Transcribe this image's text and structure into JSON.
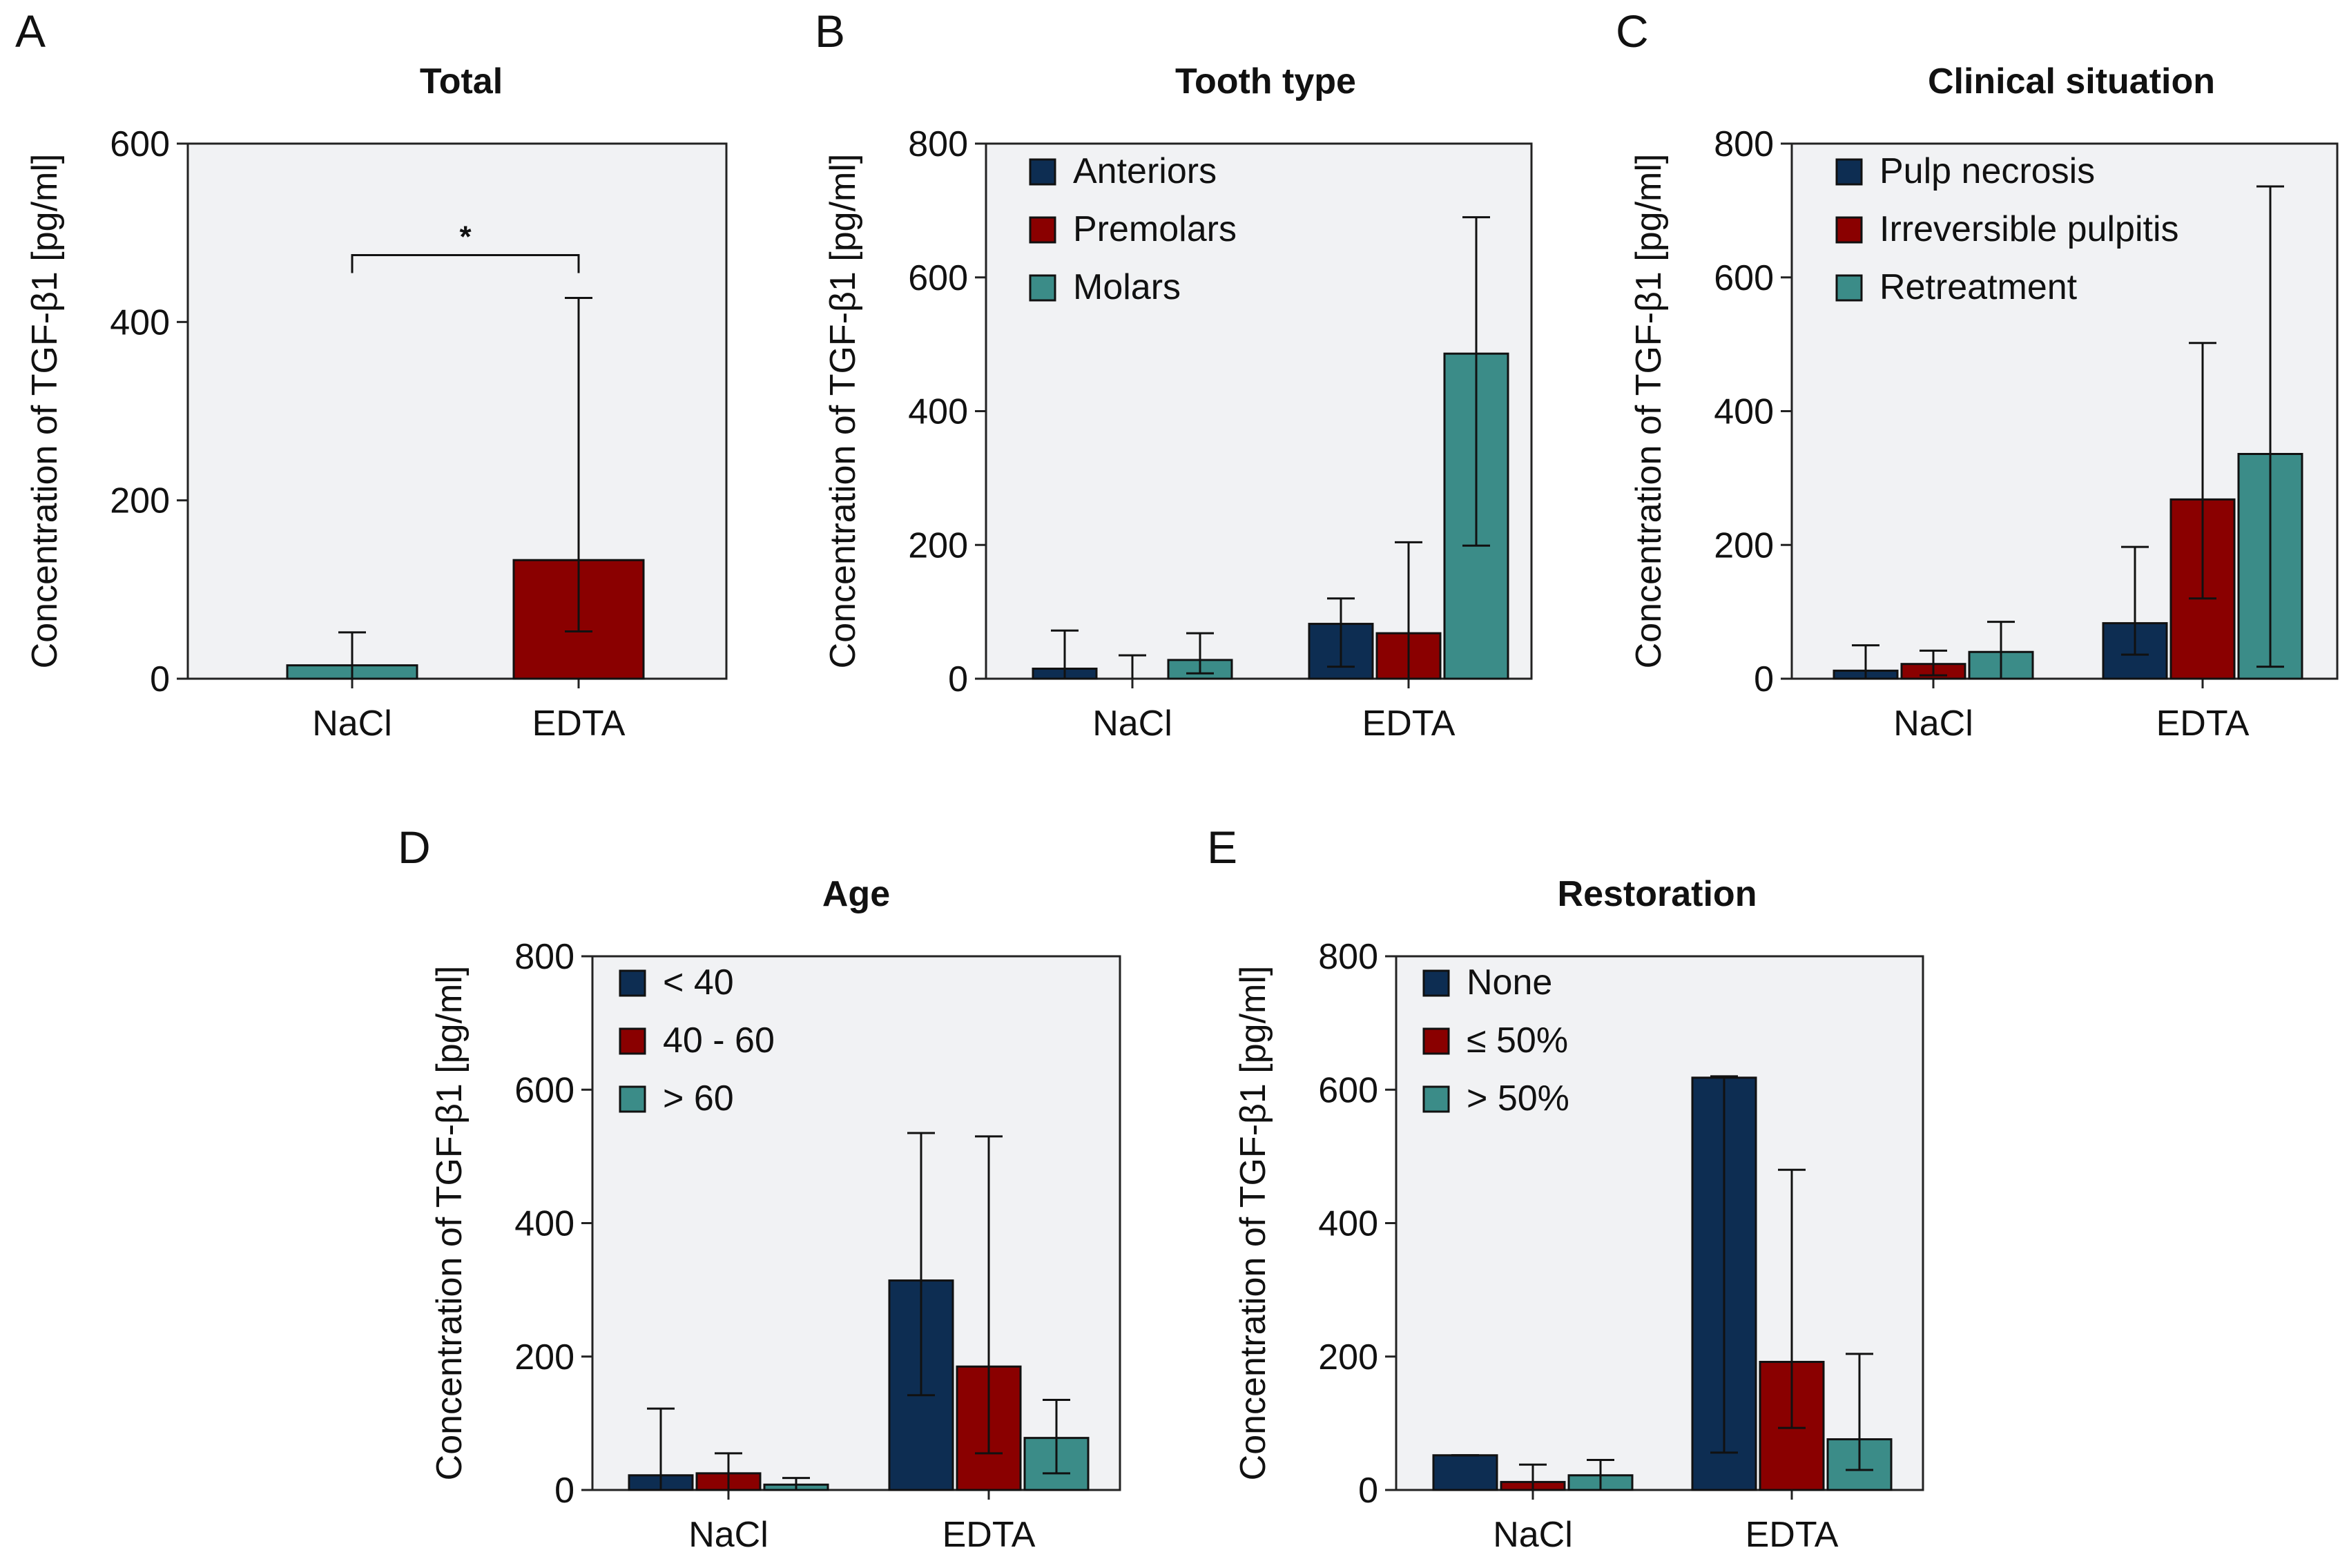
{
  "colors": {
    "navy": "#0d2d52",
    "red": "#8a0000",
    "teal": "#3b8c88",
    "plot_bg": "#f1f2f4",
    "axis": "#222222"
  },
  "chart_data": [
    {
      "id": "A",
      "letter": "A",
      "type": "bar",
      "title": "Total",
      "ylabel": "Concentration of TGF-β1 [pg/ml]",
      "ylim": [
        0,
        600
      ],
      "yticks": [
        "0",
        "200",
        "400",
        "600"
      ],
      "categories": [
        "NaCl",
        "EDTA"
      ],
      "series": [
        {
          "name": "Total",
          "colors": [
            "#3b8c88",
            "#8a0000"
          ],
          "values": [
            15,
            133
          ],
          "errors": [
            52,
            427
          ],
          "lower": [
            0,
            53
          ]
        }
      ],
      "annotation": {
        "text": "*",
        "between": [
          "NaCl",
          "EDTA"
        ],
        "level": 475
      }
    },
    {
      "id": "B",
      "letter": "B",
      "type": "bar",
      "title": "Tooth type",
      "ylabel": "Concentration of TGF-β1 [pg/ml]",
      "ylim": [
        0,
        800
      ],
      "yticks": [
        "0",
        "200",
        "400",
        "600",
        "800"
      ],
      "categories": [
        "NaCl",
        "EDTA"
      ],
      "legend": "top-left",
      "series": [
        {
          "name": "Anteriors",
          "color": "#0d2d52",
          "values": [
            15,
            82
          ],
          "errors": [
            72,
            120
          ],
          "lower": [
            0,
            18
          ]
        },
        {
          "name": "Premolars",
          "color": "#8a0000",
          "values": [
            0,
            68
          ],
          "errors": [
            35,
            204
          ],
          "lower": [
            0,
            0
          ]
        },
        {
          "name": "Molars",
          "color": "#3b8c88",
          "values": [
            28,
            486
          ],
          "errors": [
            68,
            690
          ],
          "lower": [
            8,
            199
          ]
        }
      ]
    },
    {
      "id": "C",
      "letter": "C",
      "type": "bar",
      "title": "Clinical situation",
      "ylabel": "Concentration of TGF-β1 [pg/ml]",
      "ylim": [
        0,
        800
      ],
      "yticks": [
        "0",
        "200",
        "400",
        "600",
        "800"
      ],
      "categories": [
        "NaCl",
        "EDTA"
      ],
      "legend": "top-left",
      "series": [
        {
          "name": "Pulp necrosis",
          "color": "#0d2d52",
          "values": [
            12,
            83
          ],
          "errors": [
            50,
            197
          ],
          "lower": [
            0,
            36
          ]
        },
        {
          "name": "Irreversible pulpitis",
          "color": "#8a0000",
          "values": [
            22,
            268
          ],
          "errors": [
            42,
            502
          ],
          "lower": [
            5,
            120
          ]
        },
        {
          "name": "Retreatment",
          "color": "#3b8c88",
          "values": [
            40,
            336
          ],
          "errors": [
            85,
            736
          ],
          "lower": [
            0,
            18
          ]
        }
      ]
    },
    {
      "id": "D",
      "letter": "D",
      "type": "bar",
      "title": "Age",
      "ylabel": "Concentration of TGF-β1 [pg/ml]",
      "ylim": [
        0,
        800
      ],
      "yticks": [
        "0",
        "200",
        "400",
        "600",
        "800"
      ],
      "categories": [
        "NaCl",
        "EDTA"
      ],
      "legend": "top-left",
      "series": [
        {
          "name": "< 40",
          "color": "#0d2d52",
          "values": [
            22,
            314
          ],
          "errors": [
            122,
            535
          ],
          "lower": [
            0,
            142
          ]
        },
        {
          "name": "40 - 60",
          "color": "#8a0000",
          "values": [
            25,
            185
          ],
          "errors": [
            55,
            530
          ],
          "lower": [
            0,
            55
          ]
        },
        {
          "name": "> 60",
          "color": "#3b8c88",
          "values": [
            8,
            78
          ],
          "errors": [
            18,
            135
          ],
          "lower": [
            0,
            25
          ]
        }
      ]
    },
    {
      "id": "E",
      "letter": "E",
      "type": "bar",
      "title": "Restoration",
      "ylabel": "Concentration of TGF-β1 [pg/ml]",
      "ylim": [
        0,
        800
      ],
      "yticks": [
        "0",
        "200",
        "400",
        "600",
        "800"
      ],
      "categories": [
        "NaCl",
        "EDTA"
      ],
      "legend": "top-left",
      "series": [
        {
          "name": "None",
          "color": "#0d2d52",
          "values": [
            52,
            618
          ],
          "errors": [
            52,
            620
          ],
          "lower": [
            52,
            56
          ]
        },
        {
          "name": "≤ 50%",
          "color": "#8a0000",
          "values": [
            12,
            192
          ],
          "errors": [
            38,
            480
          ],
          "lower": [
            0,
            93
          ]
        },
        {
          "name": "> 50%",
          "color": "#3b8c88",
          "values": [
            22,
            76
          ],
          "errors": [
            45,
            204
          ],
          "lower": [
            0,
            30
          ]
        }
      ]
    }
  ]
}
